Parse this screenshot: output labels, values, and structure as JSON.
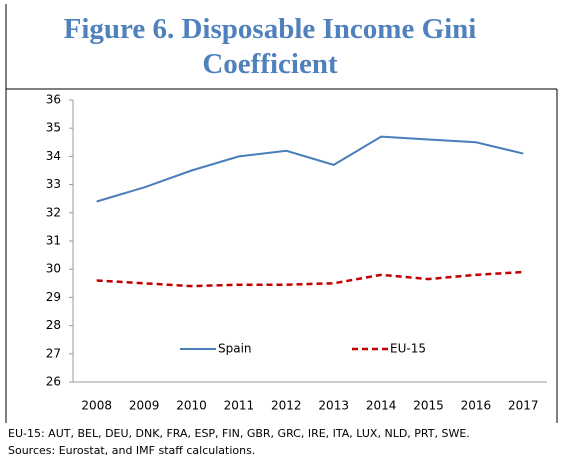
{
  "chart_data": {
    "type": "line",
    "title": "Figure 6. Disposable Income Gini Coefficient",
    "categories": [
      "2008",
      "2009",
      "2010",
      "2011",
      "2012",
      "2013",
      "2014",
      "2015",
      "2016",
      "2017"
    ],
    "series": [
      {
        "name": "Spain",
        "color": "#4a7ebb",
        "dash": false,
        "values": [
          32.4,
          32.9,
          33.5,
          34.0,
          34.2,
          33.7,
          34.7,
          34.6,
          34.5,
          34.1
        ]
      },
      {
        "name": "EU-15",
        "color": "#c00000",
        "dash": true,
        "values": [
          29.6,
          29.5,
          29.4,
          29.45,
          29.45,
          29.5,
          29.8,
          29.65,
          29.8,
          29.9
        ]
      }
    ],
    "ylim": [
      26,
      36
    ],
    "yticks": [
      26,
      27,
      28,
      29,
      30,
      31,
      32,
      33,
      34,
      35,
      36
    ],
    "grid": false,
    "notes": [
      "EU-15: AUT, BEL, DEU, DNK, FRA, ESP, FIN, GBR, GRC, IRE, ITA, LUX, NLD, PRT, SWE.",
      "Sources: Eurostat, and IMF staff calculations."
    ]
  }
}
